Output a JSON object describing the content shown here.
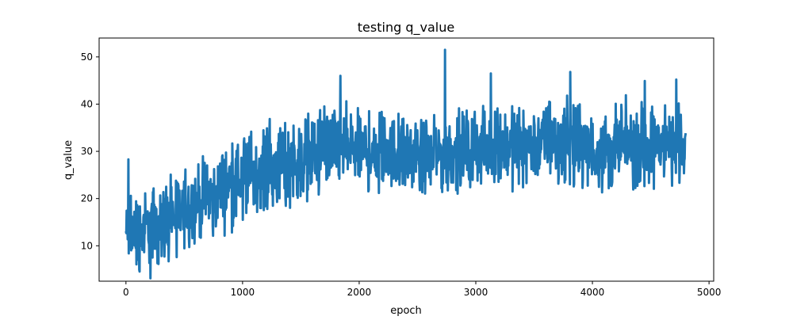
{
  "chart_data": {
    "type": "line",
    "title": "testing q_value",
    "xlabel": "epoch",
    "ylabel": "q_value",
    "xlim": [
      -230,
      5040
    ],
    "ylim": [
      2.5,
      54.0
    ],
    "xticks": [
      0,
      1000,
      2000,
      3000,
      4000,
      5000
    ],
    "yticks": [
      10,
      20,
      30,
      40,
      50
    ],
    "grid": false,
    "legend": "none",
    "color": "#1f77b4",
    "series": [
      {
        "x_start": 0,
        "x_end": 4800,
        "envelope_x": [
          0,
          100,
          200,
          300,
          400,
          500,
          600,
          700,
          800,
          900,
          1000,
          1100,
          1200,
          1300,
          1400,
          1500,
          1600,
          1700,
          1800,
          1900,
          2000,
          2200,
          2400,
          2600,
          2800,
          3000,
          3200,
          3400,
          3600,
          3800,
          4000,
          4200,
          4400,
          4600,
          4800
        ],
        "envelope_low": [
          5,
          4,
          5,
          6,
          7,
          8,
          10,
          11,
          12,
          14,
          15,
          16,
          16,
          17,
          18,
          19,
          20,
          21,
          21,
          22,
          21,
          21,
          21,
          21,
          21,
          22,
          22,
          22,
          23,
          23,
          21,
          21,
          22,
          22,
          23
        ],
        "envelope_high": [
          20,
          22,
          23,
          24,
          26,
          27,
          28,
          29,
          31,
          33,
          34,
          35,
          36,
          37,
          38,
          38,
          39,
          40,
          40,
          40,
          39,
          39,
          38,
          38,
          39,
          39,
          40,
          41,
          41,
          42,
          39,
          40,
          41,
          41,
          40
        ],
        "spikes": [
          [
            1840,
            46.0
          ],
          [
            2735,
            51.5
          ],
          [
            3130,
            46.5
          ],
          [
            3810,
            46.8
          ],
          [
            4450,
            44.9
          ],
          [
            4720,
            45.2
          ],
          [
            210,
            3.1
          ],
          [
            20,
            28.3
          ]
        ]
      }
    ]
  }
}
